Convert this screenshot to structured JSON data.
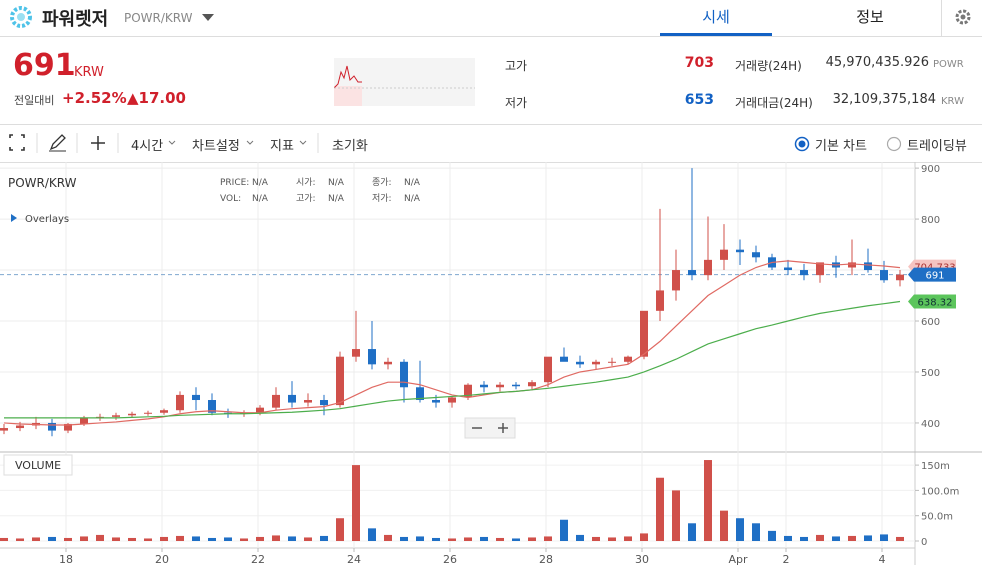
{
  "header": {
    "name": "파워렛저",
    "pair": "POWR/KRW",
    "tabs": [
      "시세",
      "정보"
    ]
  },
  "ticker": {
    "price": "691",
    "currency": "KRW",
    "change_label": "전일대비",
    "change_pct": "+2.52%",
    "change_abs": "▲17.00",
    "high_label": "고가",
    "high": "703",
    "low_label": "저가",
    "low": "653",
    "volume_label": "거래량(24H)",
    "volume": "45,970,435.926",
    "volume_unit": "POWR",
    "value_label": "거래대금(24H)",
    "value": "32,109,375,184",
    "value_unit": "KRW"
  },
  "toolbar": {
    "interval": "4시간",
    "settings": "차트설정",
    "indicators": "지표",
    "reset": "초기화",
    "options": [
      "기본 차트",
      "트레이딩뷰"
    ]
  },
  "chart_data": {
    "type": "candlestick",
    "title": "POWR/KRW",
    "overlays": "Overlays",
    "info": [
      [
        {
          "label": "PRICE:",
          "value": "N/A"
        },
        {
          "label": "시가:",
          "value": "N/A"
        },
        {
          "label": "종가:",
          "value": "N/A"
        }
      ],
      [
        {
          "label": "VOL:",
          "value": "N/A"
        },
        {
          "label": "고가:",
          "value": "N/A"
        },
        {
          "label": "저가:",
          "value": "N/A"
        }
      ]
    ],
    "up_color": "#d0504a",
    "down_color": "#1f6fc5",
    "xlim": [
      -0.25,
      56.9375
    ],
    "xticks": [
      {
        "value": 3.875,
        "label": "18"
      },
      {
        "value": 9.875,
        "label": "20"
      },
      {
        "value": 15.875,
        "label": "22"
      },
      {
        "value": 21.875,
        "label": "24"
      },
      {
        "value": 27.875,
        "label": "26"
      },
      {
        "value": 33.875,
        "label": "28"
      },
      {
        "value": 39.875,
        "label": "30"
      },
      {
        "value": 45.875,
        "label": "Apr"
      },
      {
        "value": 48.875,
        "label": "2"
      },
      {
        "value": 54.875,
        "label": "4"
      }
    ],
    "ylim": [
      343,
      912
    ],
    "yticks": [
      400,
      500,
      600,
      700,
      800,
      900
    ],
    "grid": true,
    "ohlc": {
      "open": [
        385,
        390,
        395,
        400,
        385,
        398,
        410,
        412,
        415,
        418,
        420,
        425,
        455,
        445,
        420,
        418,
        420,
        430,
        455,
        440,
        445,
        435,
        530,
        545,
        515,
        520,
        470,
        445,
        440,
        450,
        475,
        470,
        475,
        472,
        480,
        530,
        520,
        515,
        520,
        520,
        530,
        620,
        660,
        700,
        690,
        720,
        740,
        735,
        725,
        705,
        700,
        690,
        715,
        705,
        715,
        700,
        680
      ],
      "high": [
        398,
        402,
        412,
        408,
        400,
        414,
        418,
        420,
        422,
        424,
        428,
        462,
        470,
        458,
        428,
        425,
        435,
        470,
        482,
        458,
        455,
        540,
        620,
        600,
        528,
        525,
        522,
        455,
        452,
        478,
        482,
        480,
        480,
        484,
        490,
        548,
        532,
        524,
        528,
        532,
        610,
        820,
        740,
        900,
        805,
        790,
        760,
        748,
        732,
        720,
        712,
        708,
        728,
        760,
        742,
        718,
        700
      ],
      "low": [
        378,
        384,
        388,
        374,
        380,
        394,
        404,
        406,
        410,
        414,
        416,
        420,
        425,
        415,
        410,
        412,
        415,
        425,
        430,
        432,
        415,
        430,
        520,
        505,
        505,
        440,
        440,
        430,
        430,
        445,
        460,
        462,
        466,
        466,
        470,
        524,
        508,
        505,
        512,
        515,
        525,
        600,
        640,
        680,
        680,
        700,
        710,
        715,
        700,
        690,
        680,
        675,
        685,
        690,
        695,
        675,
        668
      ],
      "close": [
        390,
        395,
        400,
        385,
        398,
        410,
        412,
        415,
        418,
        420,
        425,
        455,
        445,
        420,
        418,
        420,
        430,
        455,
        440,
        445,
        435,
        530,
        545,
        515,
        520,
        470,
        445,
        440,
        450,
        475,
        470,
        475,
        472,
        480,
        530,
        520,
        515,
        520,
        520,
        530,
        620,
        660,
        700,
        690,
        720,
        740,
        735,
        725,
        705,
        700,
        690,
        715,
        705,
        715,
        700,
        680,
        691
      ]
    },
    "lines": [
      {
        "color": "#e06a63",
        "values": [
          400,
          398,
          397,
          396,
          396,
          398,
          400,
          402,
          405,
          408,
          412,
          418,
          422,
          424,
          422,
          420,
          420,
          425,
          428,
          430,
          432,
          440,
          455,
          470,
          480,
          480,
          475,
          465,
          455,
          450,
          455,
          460,
          462,
          465,
          475,
          490,
          500,
          505,
          510,
          515,
          535,
          560,
          590,
          620,
          650,
          670,
          690,
          705,
          715,
          718,
          715,
          712,
          710,
          712,
          710,
          708,
          704.733
        ]
      },
      {
        "color": "#4cae4c",
        "values": [
          410,
          410,
          410,
          410,
          410,
          410,
          410,
          410,
          411,
          412,
          413,
          415,
          416,
          417,
          418,
          418,
          419,
          420,
          421,
          423,
          425,
          428,
          433,
          438,
          443,
          446,
          448,
          450,
          452,
          454,
          457,
          460,
          462,
          465,
          468,
          472,
          476,
          480,
          485,
          490,
          500,
          512,
          525,
          540,
          555,
          565,
          575,
          585,
          592,
          600,
          608,
          615,
          620,
          625,
          630,
          634,
          638.32
        ]
      }
    ],
    "last_price": 691,
    "volume": {
      "title": "VOLUME",
      "ylim": [
        0,
        166
      ],
      "yticks": [
        0,
        {
          "value": 50,
          "label": "50.0m"
        },
        {
          "value": 100,
          "label": "100.0m"
        },
        {
          "value": 150,
          "label": "150m"
        }
      ],
      "values": [
        6,
        5,
        7,
        8,
        6,
        9,
        12,
        7,
        6,
        5,
        8,
        10,
        9,
        6,
        7,
        5,
        8,
        11,
        9,
        7,
        10,
        45,
        150,
        25,
        12,
        8,
        9,
        6,
        5,
        7,
        8,
        6,
        5,
        7,
        9,
        42,
        12,
        8,
        7,
        9,
        15,
        125,
        100,
        35,
        160,
        60,
        45,
        35,
        20,
        10,
        8,
        12,
        9,
        10,
        11,
        13,
        8
      ]
    }
  }
}
